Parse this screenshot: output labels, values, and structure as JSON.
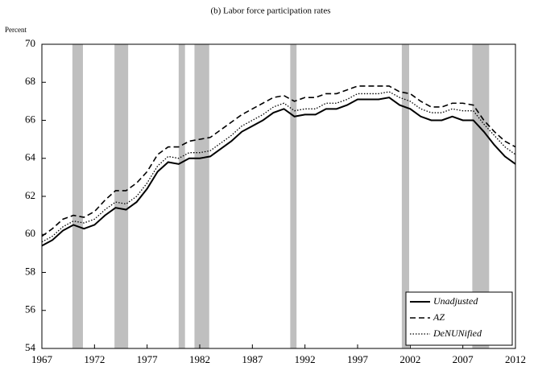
{
  "chart_data": {
    "type": "line",
    "title": "(b) Labor force participation rates",
    "y_label": "Percent",
    "xlim": [
      1967,
      2012
    ],
    "xticks": [
      1967,
      1972,
      1977,
      1982,
      1987,
      1992,
      1997,
      2002,
      2007,
      2012
    ],
    "ylim": [
      54,
      70
    ],
    "yticks": [
      54,
      56,
      58,
      60,
      62,
      64,
      66,
      68,
      70
    ],
    "legend": "lower right",
    "recession_color": "#bfbfbf",
    "recessions": [
      [
        1969.9,
        1970.9
      ],
      [
        1973.9,
        1975.2
      ],
      [
        1980.0,
        1980.6
      ],
      [
        1981.5,
        1982.9
      ],
      [
        1990.6,
        1991.2
      ],
      [
        2001.2,
        2001.9
      ],
      [
        2007.9,
        2009.5
      ]
    ],
    "x": [
      1967,
      1968,
      1969,
      1970,
      1971,
      1972,
      1973,
      1974,
      1975,
      1976,
      1977,
      1978,
      1979,
      1980,
      1981,
      1982,
      1983,
      1984,
      1985,
      1986,
      1987,
      1988,
      1989,
      1990,
      1991,
      1992,
      1993,
      1994,
      1995,
      1996,
      1997,
      1998,
      1999,
      2000,
      2001,
      2002,
      2003,
      2004,
      2005,
      2006,
      2007,
      2008,
      2009,
      2010,
      2011,
      2012
    ],
    "series": [
      {
        "name": "Unadjusted",
        "color": "#000000",
        "dash": "solid",
        "values": [
          59.4,
          59.7,
          60.2,
          60.5,
          60.3,
          60.5,
          61.0,
          61.4,
          61.3,
          61.7,
          62.4,
          63.3,
          63.8,
          63.7,
          64.0,
          64.0,
          64.1,
          64.5,
          64.9,
          65.4,
          65.7,
          66.0,
          66.4,
          66.6,
          66.2,
          66.3,
          66.3,
          66.6,
          66.6,
          66.8,
          67.1,
          67.1,
          67.1,
          67.2,
          66.8,
          66.6,
          66.2,
          66.0,
          66.0,
          66.2,
          66.0,
          66.0,
          65.4,
          64.7,
          64.1,
          63.7
        ]
      },
      {
        "name": "AZ",
        "color": "#000000",
        "dash": "dashed",
        "values": [
          59.9,
          60.3,
          60.8,
          61.0,
          60.9,
          61.2,
          61.8,
          62.3,
          62.3,
          62.7,
          63.3,
          64.2,
          64.6,
          64.6,
          64.9,
          65.0,
          65.1,
          65.5,
          65.9,
          66.3,
          66.6,
          66.9,
          67.2,
          67.3,
          67.0,
          67.2,
          67.2,
          67.4,
          67.4,
          67.6,
          67.8,
          67.8,
          67.8,
          67.8,
          67.5,
          67.4,
          67.0,
          66.7,
          66.7,
          66.9,
          66.9,
          66.8,
          66.0,
          65.4,
          64.9,
          64.6
        ]
      },
      {
        "name": "DeNUNified",
        "color": "#000000",
        "dash": "dotted",
        "values": [
          59.6,
          59.9,
          60.4,
          60.7,
          60.6,
          60.8,
          61.3,
          61.7,
          61.6,
          62.0,
          62.7,
          63.6,
          64.1,
          64.0,
          64.3,
          64.3,
          64.4,
          64.8,
          65.2,
          65.7,
          66.0,
          66.3,
          66.7,
          66.9,
          66.5,
          66.6,
          66.6,
          66.9,
          66.9,
          67.1,
          67.4,
          67.4,
          67.4,
          67.5,
          67.2,
          67.0,
          66.6,
          66.4,
          66.4,
          66.6,
          66.5,
          66.5,
          65.8,
          65.2,
          64.6,
          64.2
        ]
      }
    ]
  }
}
